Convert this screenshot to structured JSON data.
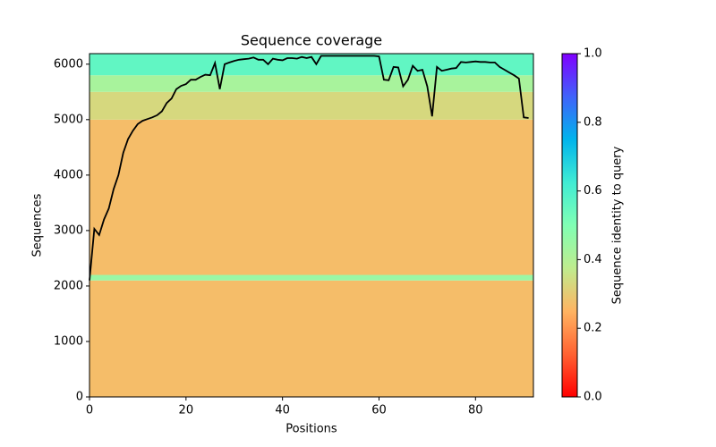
{
  "chart_data": {
    "type": "coverage",
    "title": "Sequence coverage",
    "x_label": "Positions",
    "y_label": "Sequences",
    "xlim": [
      0,
      92
    ],
    "ylim": [
      0,
      6190
    ],
    "xticks": [
      0,
      20,
      40,
      60,
      80
    ],
    "yticks": [
      0,
      1000,
      2000,
      3000,
      4000,
      5000,
      6000
    ],
    "bands": [
      {
        "from": 0,
        "to": 2100,
        "identity": 0.27
      },
      {
        "from": 2100,
        "to": 2200,
        "identity": 0.45
      },
      {
        "from": 2200,
        "to": 5000,
        "identity": 0.27
      },
      {
        "from": 5000,
        "to": 5500,
        "identity": 0.33
      },
      {
        "from": 5500,
        "to": 5800,
        "identity": 0.42
      },
      {
        "from": 5800,
        "to": 6190,
        "identity": 0.56
      }
    ],
    "line": {
      "color": "#000000",
      "x": [
        0,
        1,
        2,
        3,
        4,
        5,
        6,
        7,
        8,
        9,
        10,
        11,
        12,
        13,
        14,
        15,
        16,
        17,
        18,
        19,
        20,
        21,
        22,
        23,
        24,
        25,
        26,
        27,
        28,
        29,
        30,
        31,
        32,
        33,
        34,
        35,
        36,
        37,
        38,
        39,
        40,
        41,
        42,
        43,
        44,
        45,
        46,
        47,
        48,
        49,
        50,
        51,
        52,
        53,
        54,
        55,
        56,
        57,
        58,
        59,
        60,
        61,
        62,
        63,
        64,
        65,
        66,
        67,
        68,
        69,
        70,
        71,
        72,
        73,
        74,
        75,
        76,
        77,
        78,
        79,
        80,
        81,
        82,
        83,
        84,
        85,
        86,
        87,
        88,
        89,
        90,
        91
      ],
      "values": [
        2100,
        3030,
        2920,
        3200,
        3400,
        3750,
        4000,
        4400,
        4650,
        4800,
        4920,
        4980,
        5010,
        5040,
        5080,
        5150,
        5300,
        5380,
        5550,
        5610,
        5640,
        5720,
        5720,
        5770,
        5810,
        5800,
        6020,
        5550,
        6000,
        6030,
        6060,
        6080,
        6090,
        6100,
        6120,
        6080,
        6080,
        6000,
        6100,
        6080,
        6070,
        6110,
        6110,
        6100,
        6130,
        6110,
        6130,
        6000,
        6150,
        6150,
        6150,
        6150,
        6150,
        6150,
        6150,
        6150,
        6150,
        6150,
        6150,
        6150,
        6140,
        5720,
        5710,
        5950,
        5940,
        5600,
        5720,
        5970,
        5880,
        5900,
        5600,
        5060,
        5950,
        5880,
        5900,
        5920,
        5930,
        6040,
        6030,
        6040,
        6050,
        6040,
        6040,
        6030,
        6030,
        5950,
        5900,
        5850,
        5800,
        5740,
        5040,
        5030
      ]
    },
    "colorbar": {
      "label": "Sequence identity to query",
      "lim": [
        0,
        1
      ],
      "ticks": [
        {
          "value": 0,
          "label": "0.0"
        },
        {
          "value": 0.2,
          "label": "0.2"
        },
        {
          "value": 0.4,
          "label": "0.4"
        },
        {
          "value": 0.6,
          "label": "0.6"
        },
        {
          "value": 0.8,
          "label": "0.8"
        },
        {
          "value": 1,
          "label": "1.0"
        }
      ],
      "colormap": [
        "#ff0000",
        "#ff6232",
        "#ffb462",
        "#bfec8e",
        "#80ffb4",
        "#40ecd4",
        "#00b4ec",
        "#4062fa",
        "#8000ff"
      ]
    }
  }
}
